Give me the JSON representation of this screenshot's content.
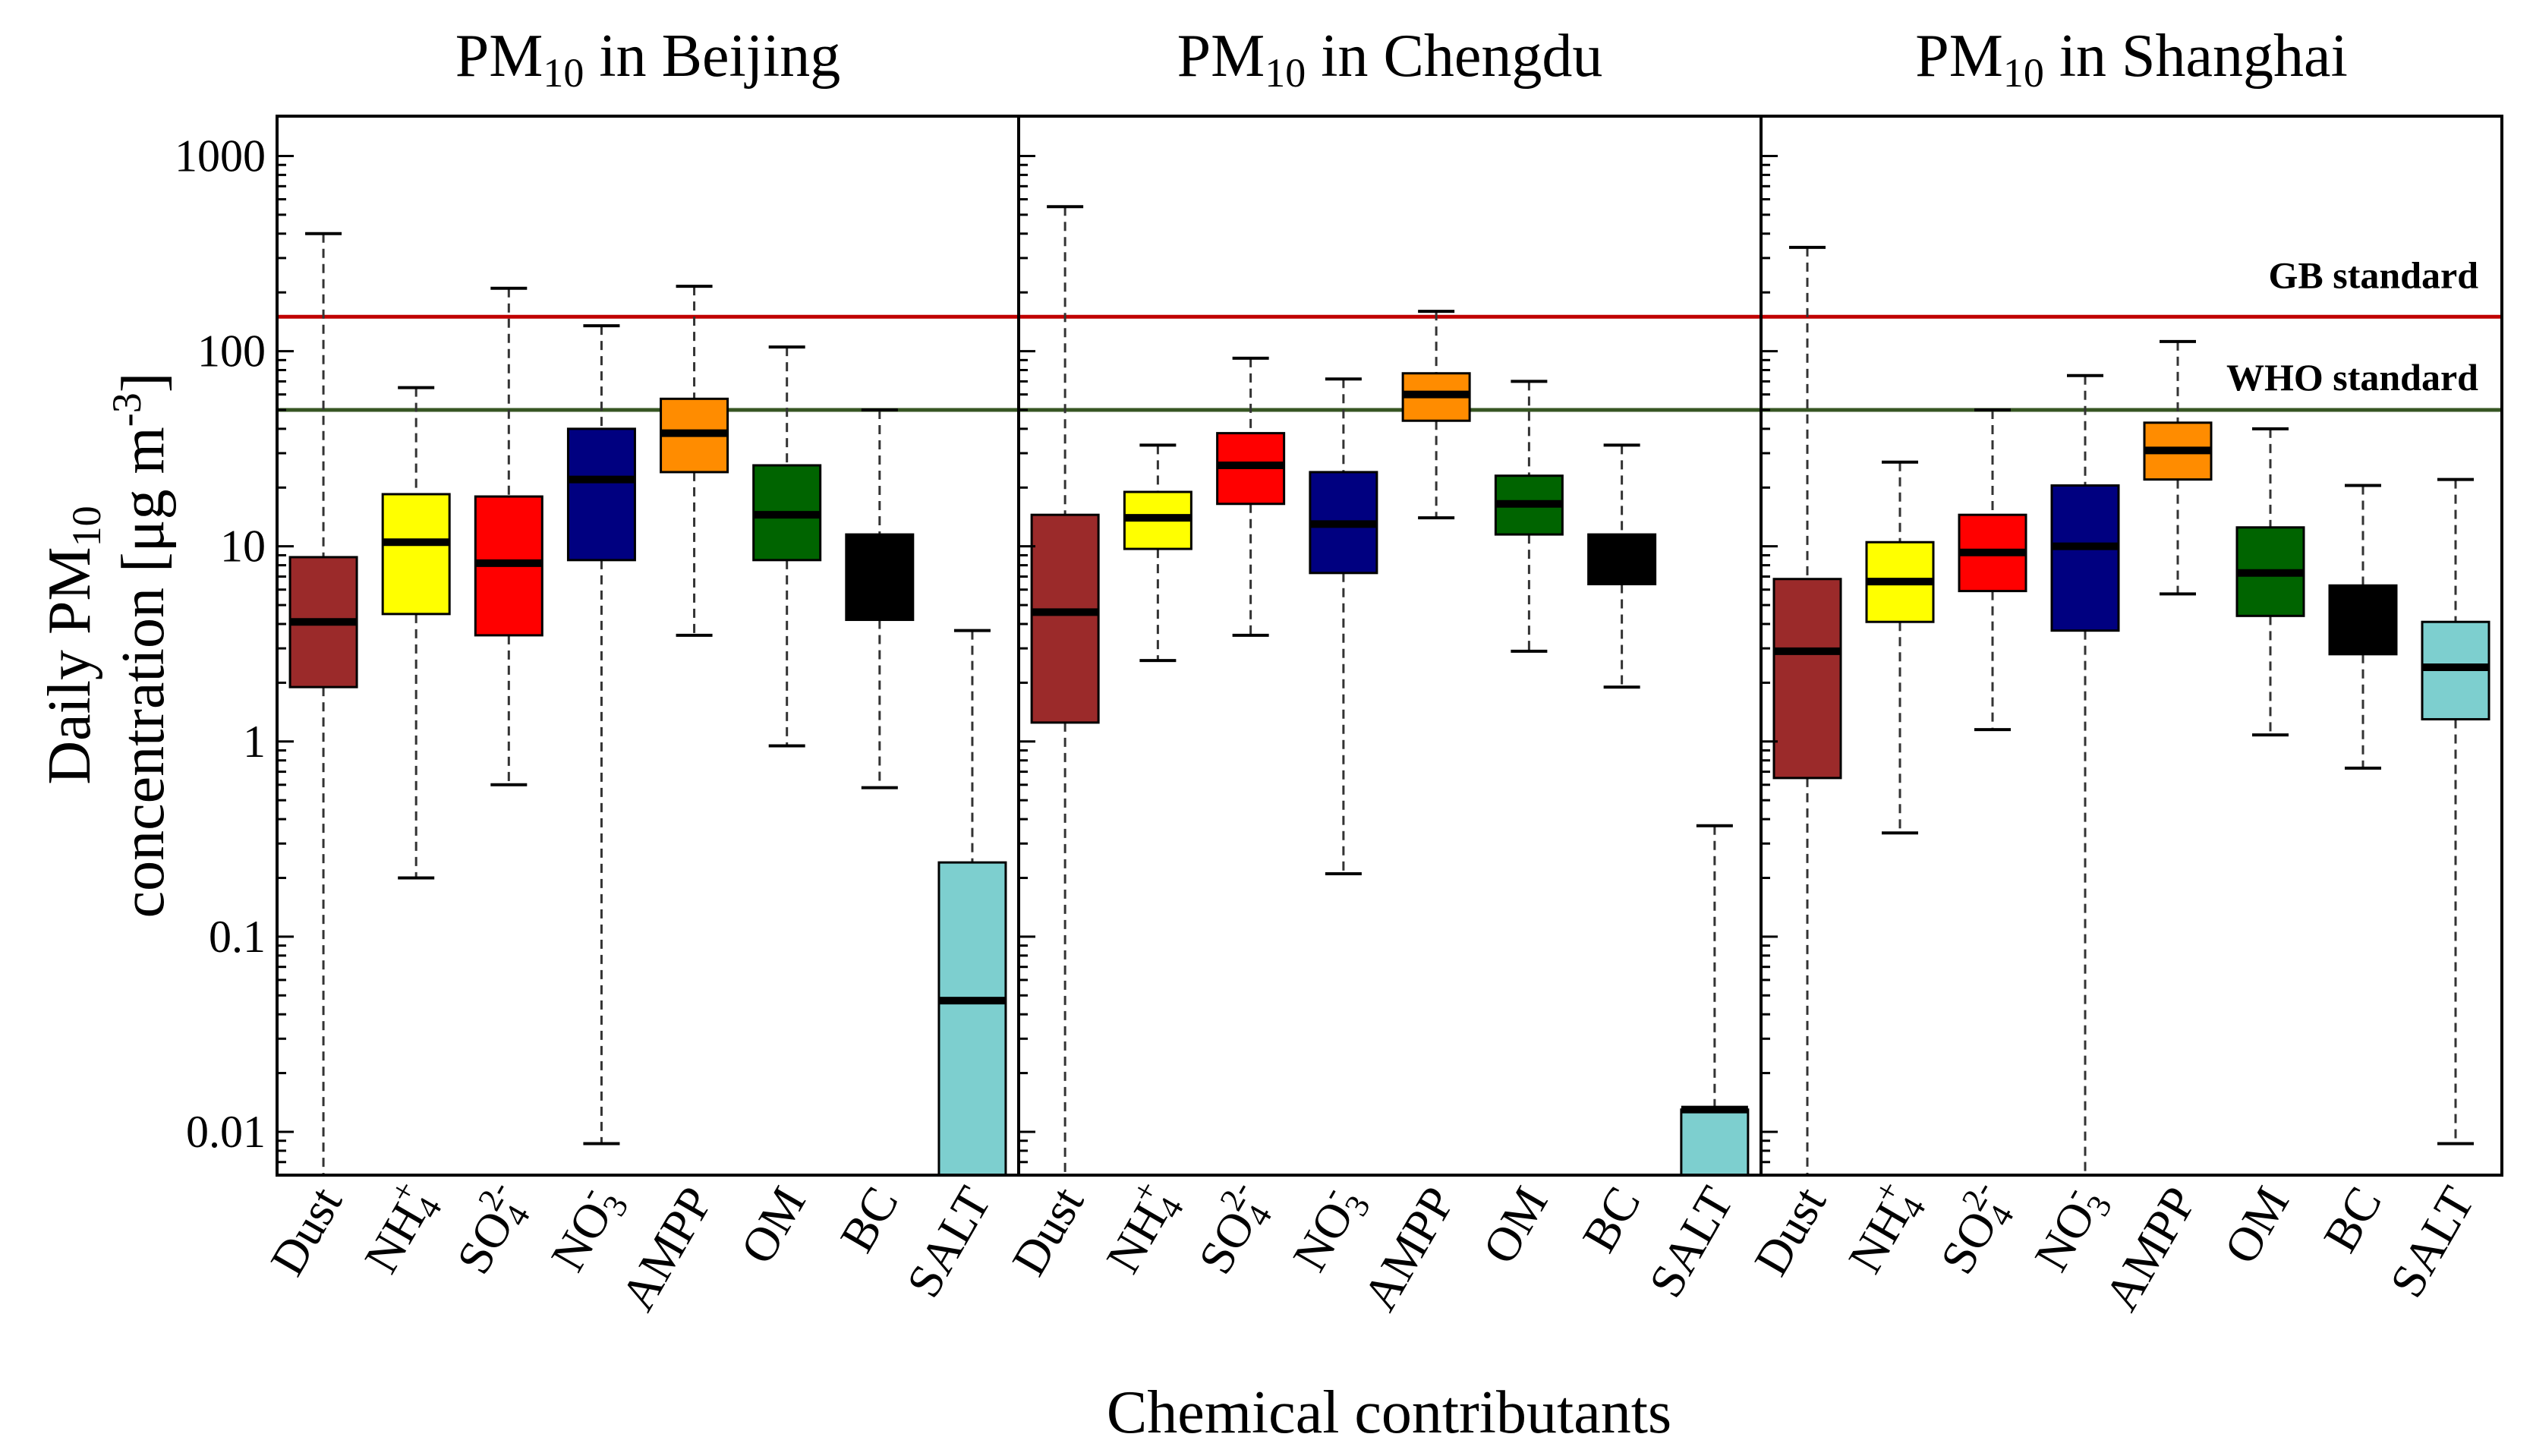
{
  "colors": {
    "gb_line": "#c00000",
    "who_line": "#375623",
    "gb_text": "#c00000",
    "who_text": "#375623",
    "frame": "#000000"
  },
  "chart_data": {
    "type": "boxplot",
    "scale": "log",
    "ylim": [
      0.006,
      1600
    ],
    "y_ticks": [
      {
        "value": 0.01,
        "label": "0.01"
      },
      {
        "value": 0.1,
        "label": "0.1"
      },
      {
        "value": 1,
        "label": "1"
      },
      {
        "value": 10,
        "label": "10"
      },
      {
        "value": 100,
        "label": "100"
      },
      {
        "value": 1000,
        "label": "1000"
      }
    ],
    "ylabel_line1_pre": "Daily PM",
    "ylabel_line1_sub": "10",
    "ylabel_line2_pre": "concentration [μg m",
    "ylabel_line2_sup": "-3",
    "ylabel_line2_post": "]",
    "xlabel": "Chemical contributants",
    "categories": [
      {
        "key": "dust",
        "base": "Dust",
        "sub": "",
        "sup": "",
        "color": "#9b2a2a"
      },
      {
        "key": "nh4",
        "base": "NH",
        "sub": "4",
        "sup": "+",
        "color": "#ffff00"
      },
      {
        "key": "so4",
        "base": "SO",
        "sub": "4",
        "sup": "2-",
        "color": "#ff0000"
      },
      {
        "key": "no3",
        "base": "NO",
        "sub": "3",
        "sup": "-",
        "color": "#000080"
      },
      {
        "key": "ampp",
        "base": "AMPP",
        "sub": "",
        "sup": "",
        "color": "#ff8c00"
      },
      {
        "key": "om",
        "base": "OM",
        "sub": "",
        "sup": "",
        "color": "#006400"
      },
      {
        "key": "bc",
        "base": "BC",
        "sub": "",
        "sup": "",
        "color": "#000000"
      },
      {
        "key": "salt",
        "base": "SALT",
        "sub": "",
        "sup": "",
        "color": "#7dcfcf"
      }
    ],
    "reference_lines": [
      {
        "name": "GB standard",
        "value": 150,
        "color": "#c00000"
      },
      {
        "name": "WHO standard",
        "value": 50,
        "color": "#375623"
      }
    ],
    "panels": [
      {
        "city": "Beijing",
        "title_pre": "PM",
        "title_sub": "10",
        "title_post": " in Beijing",
        "boxes": [
          {
            "min": 0.006,
            "q1": 1.9,
            "median": 4.1,
            "q3": 8.8,
            "max": 400
          },
          {
            "min": 0.2,
            "q1": 4.5,
            "median": 10.5,
            "q3": 18.5,
            "max": 65
          },
          {
            "min": 0.6,
            "q1": 3.5,
            "median": 8.2,
            "q3": 18,
            "max": 210
          },
          {
            "min": 0.0087,
            "q1": 8.5,
            "median": 22,
            "q3": 40,
            "max": 135
          },
          {
            "min": 3.5,
            "q1": 24,
            "median": 38,
            "q3": 57,
            "max": 215
          },
          {
            "min": 0.95,
            "q1": 8.5,
            "median": 14.5,
            "q3": 26,
            "max": 105
          },
          {
            "min": 0.58,
            "q1": 4.2,
            "median": 7,
            "q3": 11.5,
            "max": 50
          },
          {
            "min": 0.006,
            "q1": 0.006,
            "median": 0.047,
            "q3": 0.24,
            "max": 3.7
          }
        ]
      },
      {
        "city": "Chengdu",
        "title_pre": "PM",
        "title_sub": "10",
        "title_post": " in Chengdu",
        "boxes": [
          {
            "min": 0.006,
            "q1": 1.25,
            "median": 4.6,
            "q3": 14.5,
            "max": 550
          },
          {
            "min": 2.6,
            "q1": 9.7,
            "median": 14,
            "q3": 19,
            "max": 33
          },
          {
            "min": 3.5,
            "q1": 16.5,
            "median": 26,
            "q3": 38,
            "max": 92
          },
          {
            "min": 0.21,
            "q1": 7.3,
            "median": 13,
            "q3": 24,
            "max": 72
          },
          {
            "min": 14,
            "q1": 44,
            "median": 60,
            "q3": 77,
            "max": 160
          },
          {
            "min": 2.9,
            "q1": 11.5,
            "median": 16.5,
            "q3": 23,
            "max": 70
          },
          {
            "min": 1.9,
            "q1": 6.4,
            "median": 8.6,
            "q3": 11.5,
            "max": 33
          },
          {
            "min": 0.006,
            "q1": 0.006,
            "median": 0.013,
            "q3": 0.013,
            "max": 0.37
          }
        ]
      },
      {
        "city": "Shanghai",
        "title_pre": "PM",
        "title_sub": "10",
        "title_post": " in Shanghai",
        "boxes": [
          {
            "min": 0.006,
            "q1": 0.65,
            "median": 2.9,
            "q3": 6.8,
            "max": 340
          },
          {
            "min": 0.34,
            "q1": 4.1,
            "median": 6.6,
            "q3": 10.5,
            "max": 27
          },
          {
            "min": 1.15,
            "q1": 5.9,
            "median": 9.3,
            "q3": 14.5,
            "max": 50
          },
          {
            "min": 0.006,
            "q1": 3.7,
            "median": 10,
            "q3": 20.5,
            "max": 75
          },
          {
            "min": 5.7,
            "q1": 22,
            "median": 31,
            "q3": 43,
            "max": 112
          },
          {
            "min": 1.08,
            "q1": 4.4,
            "median": 7.3,
            "q3": 12.5,
            "max": 40
          },
          {
            "min": 0.73,
            "q1": 2.8,
            "median": 4.3,
            "q3": 6.3,
            "max": 20.5
          },
          {
            "min": 0.0087,
            "q1": 1.3,
            "median": 2.4,
            "q3": 4.1,
            "max": 22
          }
        ]
      }
    ]
  }
}
